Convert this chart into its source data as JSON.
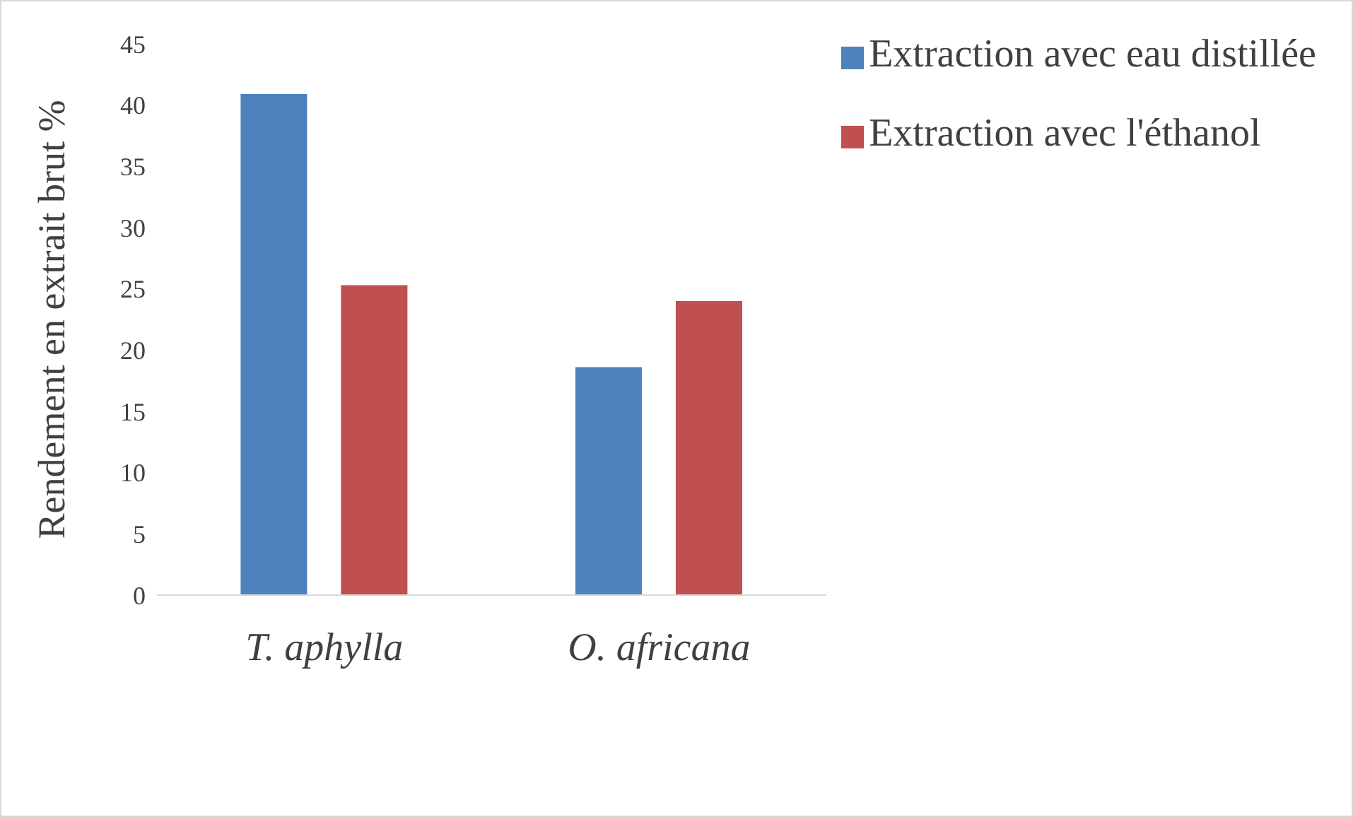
{
  "chart_data": {
    "type": "bar",
    "ylabel": "Rendement en extrait brut %",
    "categories": [
      "T. aphylla",
      "O. africana"
    ],
    "series": [
      {
        "name": "Extraction avec eau distillée",
        "color": "#4f81bd",
        "values": [
          40.9,
          18.6
        ]
      },
      {
        "name": "Extraction avec l'éthanol",
        "color": "#c0504d",
        "values": [
          25.3,
          24
        ]
      }
    ],
    "ylim": [
      0,
      45
    ],
    "yticks": [
      0,
      5,
      10,
      15,
      20,
      25,
      30,
      35,
      40,
      45
    ],
    "grid": false,
    "legend": "top right"
  }
}
